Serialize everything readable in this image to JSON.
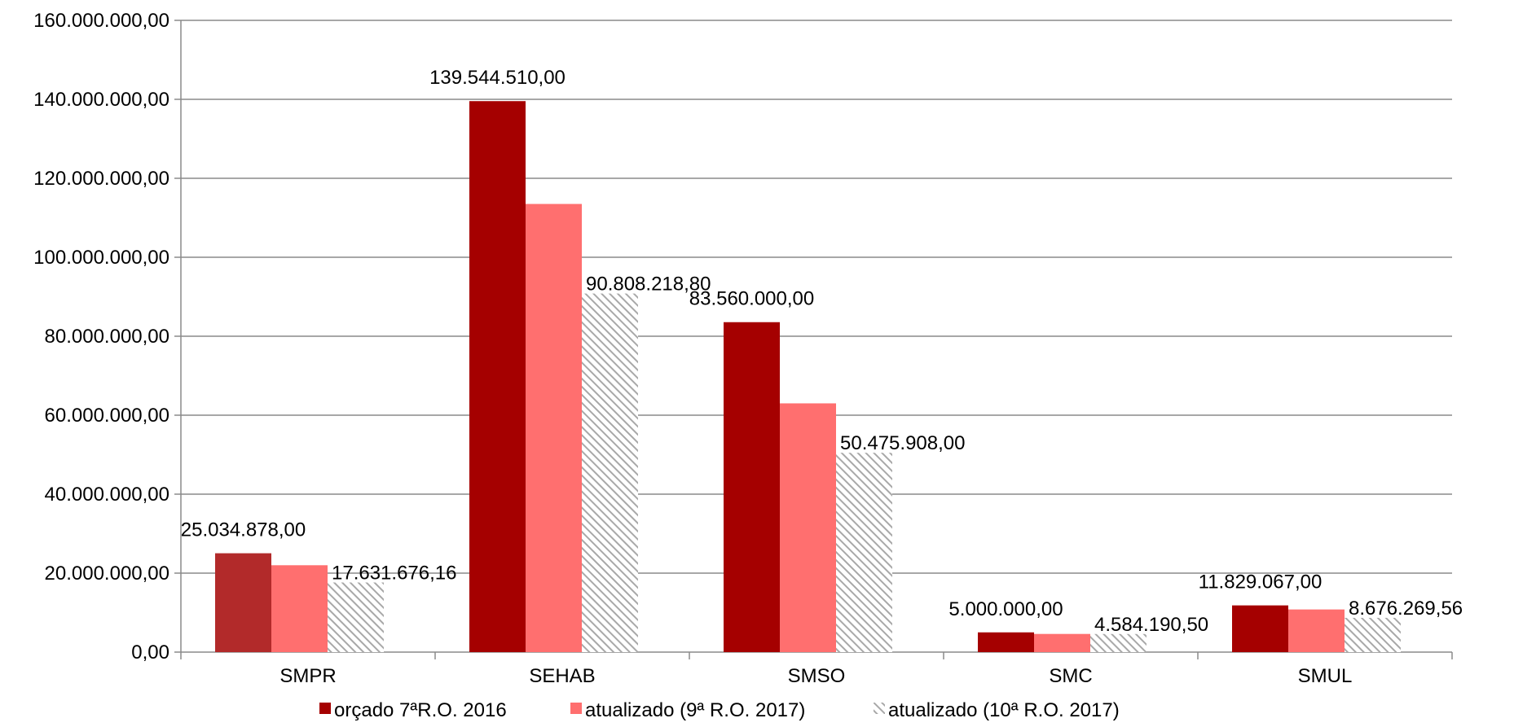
{
  "chart_data": {
    "type": "bar",
    "categories": [
      "SMPR",
      "SEHAB",
      "SMSO",
      "SMC",
      "SMUL"
    ],
    "series": [
      {
        "name": "orçado 7ªR.O. 2016",
        "values": [
          25034878.0,
          139544510.0,
          83560000.0,
          5000000.0,
          11829067.0
        ],
        "color": "#a50000"
      },
      {
        "name": "atualizado (9ª R.O. 2017)",
        "values": [
          22000000,
          113500000,
          63000000,
          4600000,
          10800000
        ],
        "color": "#ff6f6f"
      },
      {
        "name": "atualizado (10ª R.O. 2017)",
        "values": [
          17631676.16,
          90808218.8,
          50475908.0,
          4584190.5,
          8676269.56
        ],
        "color": "#c8c8c8",
        "pattern": "diagonal-hatch"
      }
    ],
    "data_labels": [
      {
        "series": 0,
        "category": 0,
        "text": "25.034.878,00"
      },
      {
        "series": 2,
        "category": 0,
        "text": "17.631.676,16"
      },
      {
        "series": 0,
        "category": 1,
        "text": "139.544.510,00"
      },
      {
        "series": 2,
        "category": 1,
        "text": "90.808.218,80"
      },
      {
        "series": 0,
        "category": 2,
        "text": "83.560.000,00"
      },
      {
        "series": 2,
        "category": 2,
        "text": "50.475.908,00"
      },
      {
        "series": 0,
        "category": 3,
        "text": "5.000.000,00"
      },
      {
        "series": 2,
        "category": 3,
        "text": "4.584.190,50"
      },
      {
        "series": 0,
        "category": 4,
        "text": "11.829.067,00"
      },
      {
        "series": 2,
        "category": 4,
        "text": "8.676.269,56"
      }
    ],
    "y_ticks": [
      {
        "value": 0,
        "label": "0,00"
      },
      {
        "value": 20000000,
        "label": "20.000.000,00"
      },
      {
        "value": 40000000,
        "label": "40.000.000,00"
      },
      {
        "value": 60000000,
        "label": "60.000.000,00"
      },
      {
        "value": 80000000,
        "label": "80.000.000,00"
      },
      {
        "value": 100000000,
        "label": "100.000.000,00"
      },
      {
        "value": 120000000,
        "label": "120.000.000,00"
      },
      {
        "value": 140000000,
        "label": "140.000.000,00"
      },
      {
        "value": 160000000,
        "label": "160.000.000,00"
      }
    ],
    "ylim": [
      0,
      160000000
    ],
    "grid": true,
    "legend_position": "bottom"
  }
}
